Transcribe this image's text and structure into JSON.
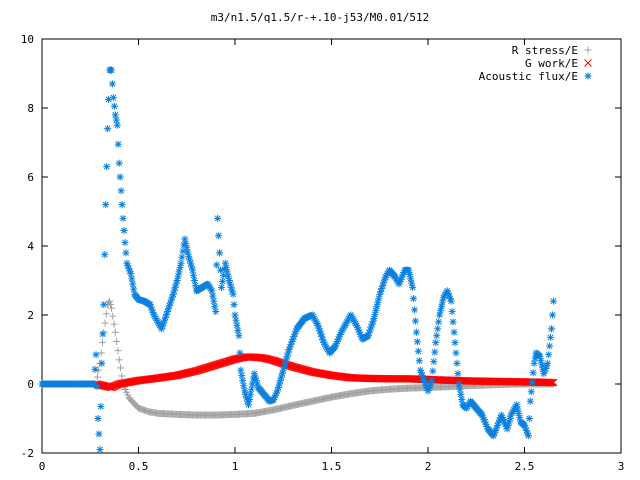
{
  "chart_data": {
    "type": "scatter",
    "title": "m3/n1.5/q1.5/r-+.10-j53/M0.01/512",
    "xlabel": "",
    "ylabel": "",
    "xlim": [
      0,
      3
    ],
    "ylim": [
      -2,
      10
    ],
    "x_ticks": [
      "0",
      "0.5",
      "1",
      "1.5",
      "2",
      "2.5",
      "3"
    ],
    "y_ticks": [
      "-2",
      "0",
      "2",
      "4",
      "6",
      "8",
      "10"
    ],
    "grid": false,
    "legend_position": "top-right",
    "series": [
      {
        "name": "R stress/E",
        "marker": "plus",
        "color": "#a0a0a0",
        "points": [
          [
            0.28,
            0.0
          ],
          [
            0.3,
            0.6
          ],
          [
            0.32,
            1.5
          ],
          [
            0.34,
            2.3
          ],
          [
            0.35,
            2.4
          ],
          [
            0.36,
            2.2
          ],
          [
            0.38,
            1.5
          ],
          [
            0.4,
            0.7
          ],
          [
            0.42,
            0.0
          ],
          [
            0.45,
            -0.4
          ],
          [
            0.5,
            -0.7
          ],
          [
            0.55,
            -0.8
          ],
          [
            0.6,
            -0.85
          ],
          [
            0.7,
            -0.88
          ],
          [
            0.8,
            -0.9
          ],
          [
            0.9,
            -0.9
          ],
          [
            1.0,
            -0.88
          ],
          [
            1.1,
            -0.85
          ],
          [
            1.2,
            -0.75
          ],
          [
            1.3,
            -0.62
          ],
          [
            1.4,
            -0.5
          ],
          [
            1.5,
            -0.38
          ],
          [
            1.6,
            -0.28
          ],
          [
            1.7,
            -0.2
          ],
          [
            1.8,
            -0.15
          ],
          [
            1.9,
            -0.12
          ],
          [
            2.0,
            -0.1
          ],
          [
            2.1,
            -0.08
          ],
          [
            2.2,
            -0.05
          ],
          [
            2.3,
            -0.03
          ],
          [
            2.4,
            -0.01
          ],
          [
            2.5,
            0.0
          ],
          [
            2.6,
            0.0
          ],
          [
            2.65,
            0.0
          ]
        ]
      },
      {
        "name": "G work/E",
        "marker": "cross",
        "color": "#ff0000",
        "points": [
          [
            0.28,
            0.0
          ],
          [
            0.32,
            -0.05
          ],
          [
            0.36,
            -0.1
          ],
          [
            0.4,
            0.0
          ],
          [
            0.5,
            0.1
          ],
          [
            0.6,
            0.17
          ],
          [
            0.7,
            0.25
          ],
          [
            0.8,
            0.38
          ],
          [
            0.9,
            0.55
          ],
          [
            1.0,
            0.72
          ],
          [
            1.05,
            0.78
          ],
          [
            1.1,
            0.78
          ],
          [
            1.15,
            0.75
          ],
          [
            1.2,
            0.68
          ],
          [
            1.3,
            0.5
          ],
          [
            1.4,
            0.35
          ],
          [
            1.5,
            0.25
          ],
          [
            1.6,
            0.18
          ],
          [
            1.7,
            0.16
          ],
          [
            1.8,
            0.15
          ],
          [
            1.9,
            0.15
          ],
          [
            2.0,
            0.13
          ],
          [
            2.1,
            0.11
          ],
          [
            2.2,
            0.09
          ],
          [
            2.3,
            0.08
          ],
          [
            2.4,
            0.07
          ],
          [
            2.5,
            0.06
          ],
          [
            2.6,
            0.05
          ],
          [
            2.65,
            0.04
          ]
        ]
      },
      {
        "name": "Acoustic flux/E",
        "marker": "asterisk",
        "color": "#0a80e0",
        "points": [
          [
            0.0,
            0.0
          ],
          [
            0.27,
            0.0
          ],
          [
            0.28,
            0.85
          ],
          [
            0.29,
            -1.0
          ],
          [
            0.3,
            -1.9
          ],
          [
            0.31,
            0.6
          ],
          [
            0.32,
            2.3
          ],
          [
            0.33,
            5.2
          ],
          [
            0.34,
            7.4
          ],
          [
            0.35,
            9.1
          ],
          [
            0.36,
            9.1
          ],
          [
            0.37,
            8.3
          ],
          [
            0.38,
            7.8
          ],
          [
            0.39,
            7.5
          ],
          [
            0.4,
            6.4
          ],
          [
            0.41,
            5.6
          ],
          [
            0.42,
            4.8
          ],
          [
            0.43,
            4.1
          ],
          [
            0.44,
            3.5
          ],
          [
            0.46,
            3.2
          ],
          [
            0.48,
            2.6
          ],
          [
            0.5,
            2.45
          ],
          [
            0.53,
            2.4
          ],
          [
            0.56,
            2.3
          ],
          [
            0.58,
            2.0
          ],
          [
            0.6,
            1.8
          ],
          [
            0.62,
            1.6
          ],
          [
            0.65,
            2.1
          ],
          [
            0.68,
            2.6
          ],
          [
            0.7,
            3.0
          ],
          [
            0.72,
            3.5
          ],
          [
            0.74,
            4.2
          ],
          [
            0.76,
            3.7
          ],
          [
            0.78,
            3.3
          ],
          [
            0.8,
            2.7
          ],
          [
            0.83,
            2.8
          ],
          [
            0.86,
            2.9
          ],
          [
            0.88,
            2.7
          ],
          [
            0.9,
            2.1
          ],
          [
            0.91,
            4.8
          ],
          [
            0.93,
            2.8
          ],
          [
            0.95,
            3.5
          ],
          [
            0.97,
            3.0
          ],
          [
            0.99,
            2.6
          ],
          [
            1.0,
            2.0
          ],
          [
            1.02,
            1.4
          ],
          [
            1.03,
            0.4
          ],
          [
            1.05,
            -0.2
          ],
          [
            1.07,
            -0.6
          ],
          [
            1.1,
            0.3
          ],
          [
            1.12,
            -0.1
          ],
          [
            1.15,
            -0.3
          ],
          [
            1.18,
            -0.5
          ],
          [
            1.2,
            -0.45
          ],
          [
            1.22,
            -0.2
          ],
          [
            1.25,
            0.4
          ],
          [
            1.28,
            1.0
          ],
          [
            1.32,
            1.6
          ],
          [
            1.36,
            1.9
          ],
          [
            1.4,
            2.0
          ],
          [
            1.43,
            1.7
          ],
          [
            1.46,
            1.2
          ],
          [
            1.49,
            0.9
          ],
          [
            1.52,
            1.1
          ],
          [
            1.55,
            1.5
          ],
          [
            1.58,
            1.8
          ],
          [
            1.6,
            2.0
          ],
          [
            1.63,
            1.7
          ],
          [
            1.66,
            1.3
          ],
          [
            1.69,
            1.4
          ],
          [
            1.72,
            1.9
          ],
          [
            1.75,
            2.6
          ],
          [
            1.78,
            3.1
          ],
          [
            1.8,
            3.3
          ],
          [
            1.83,
            3.1
          ],
          [
            1.85,
            2.9
          ],
          [
            1.88,
            3.3
          ],
          [
            1.9,
            3.3
          ],
          [
            1.92,
            2.8
          ],
          [
            1.94,
            1.5
          ],
          [
            1.96,
            0.4
          ],
          [
            1.98,
            0.1
          ],
          [
            2.0,
            -0.2
          ],
          [
            2.02,
            0.1
          ],
          [
            2.04,
            1.2
          ],
          [
            2.06,
            2.0
          ],
          [
            2.08,
            2.5
          ],
          [
            2.1,
            2.7
          ],
          [
            2.12,
            2.4
          ],
          [
            2.14,
            1.2
          ],
          [
            2.16,
            0.0
          ],
          [
            2.18,
            -0.6
          ],
          [
            2.2,
            -0.7
          ],
          [
            2.22,
            -0.5
          ],
          [
            2.25,
            -0.7
          ],
          [
            2.28,
            -0.9
          ],
          [
            2.31,
            -1.3
          ],
          [
            2.34,
            -1.5
          ],
          [
            2.36,
            -1.2
          ],
          [
            2.38,
            -0.9
          ],
          [
            2.41,
            -1.3
          ],
          [
            2.43,
            -0.9
          ],
          [
            2.46,
            -0.6
          ],
          [
            2.48,
            -1.1
          ],
          [
            2.5,
            -1.2
          ],
          [
            2.52,
            -1.5
          ],
          [
            2.53,
            -0.5
          ],
          [
            2.55,
            0.6
          ],
          [
            2.56,
            0.9
          ],
          [
            2.58,
            0.8
          ],
          [
            2.6,
            0.3
          ],
          [
            2.62,
            0.6
          ],
          [
            2.64,
            1.6
          ],
          [
            2.65,
            2.4
          ]
        ]
      }
    ]
  }
}
